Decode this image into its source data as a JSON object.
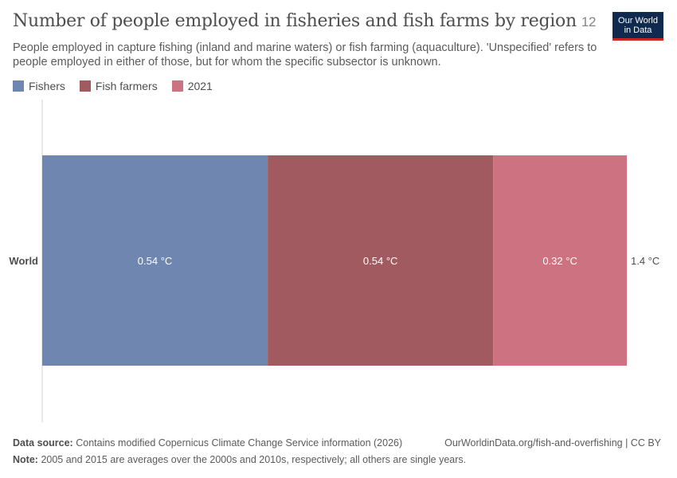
{
  "header": {
    "title": "Number of people employed in fisheries and fish farms by region",
    "title_badge": "12",
    "subtitle": "People employed in capture fishing (inland and marine waters) or fish farming (aquaculture). 'Unspecified' refers to people employed in either of those, but for whom the specific subsector is unknown.",
    "logo_line1": "Our World",
    "logo_line2": "in Data"
  },
  "legend": [
    {
      "label": "Fishers",
      "color": "#6e86b0"
    },
    {
      "label": "Fish farmers",
      "color": "#a05a60"
    },
    {
      "label": "2021",
      "color": "#cd7280"
    }
  ],
  "chart_data": {
    "type": "bar",
    "orientation": "horizontal",
    "stacked": true,
    "categories": [
      "World"
    ],
    "series": [
      {
        "name": "Fishers",
        "values": [
          0.54
        ],
        "labels": [
          "0.54 °C"
        ],
        "color": "#6e86b0"
      },
      {
        "name": "Fish farmers",
        "values": [
          0.54
        ],
        "labels": [
          "0.54 °C"
        ],
        "color": "#a05a60"
      },
      {
        "name": "2021",
        "values": [
          0.32
        ],
        "labels": [
          "0.32 °C"
        ],
        "color": "#cd7280"
      }
    ],
    "totals": [
      "1.4 °C"
    ],
    "legend_position": "top-left",
    "grid": false
  },
  "footer": {
    "source_label": "Data source:",
    "source_text": "Contains modified Copernicus Climate Change Service information (2026)",
    "url_text": "OurWorldinData.org/fish-and-overfishing | CC BY",
    "note_label": "Note:",
    "note_text": "2005 and 2015 are averages over the 2000s and 2010s, respectively; all others are single years."
  }
}
